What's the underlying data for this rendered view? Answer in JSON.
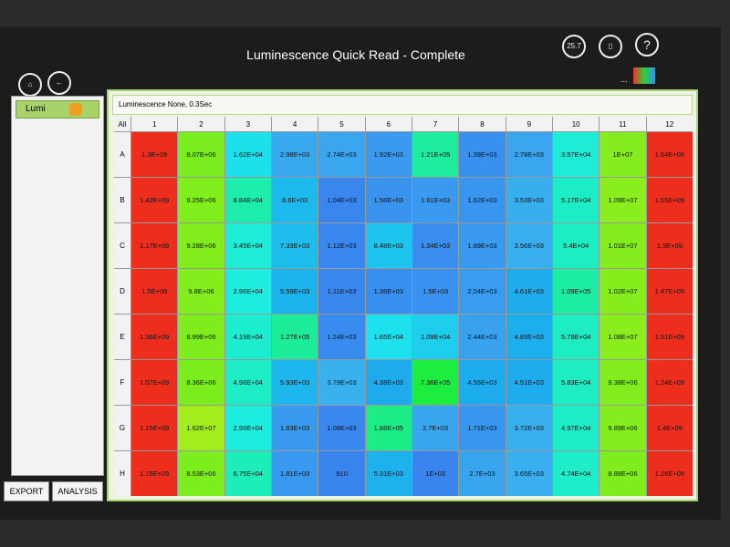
{
  "header": {
    "title": "Luminescence Quick Read - Complete",
    "icon_label": "25.7",
    "menu": "..."
  },
  "sidebar": {
    "items": [
      "Lumi"
    ]
  },
  "buttons": [
    "EXPORT",
    "ANALYSIS"
  ],
  "plate": {
    "caption": "Luminescence None, 0.3Sec",
    "corner": "All",
    "columns": [
      "1",
      "2",
      "3",
      "4",
      "5",
      "6",
      "7",
      "8",
      "9",
      "10",
      "11",
      "12"
    ],
    "rows": [
      {
        "label": "A",
        "cells": [
          "1.3E+09",
          "8.07E+06",
          "1.62E+04",
          "2.98E+03",
          "2.74E+03",
          "1.92E+03",
          "1.21E+05",
          "1.39E+03",
          "2.78E+03",
          "3.57E+04",
          "1E+07",
          "1.64E+09"
        ]
      },
      {
        "label": "B",
        "cells": [
          "1.42E+09",
          "9.25E+06",
          "8.84E+04",
          "6.6E+03",
          "1.04E+03",
          "1.56E+03",
          "1.91E+03",
          "1.62E+03",
          "3.53E+03",
          "5.17E+04",
          "1.09E+07",
          "1.55E+09"
        ]
      },
      {
        "label": "C",
        "cells": [
          "1.17E+09",
          "9.28E+06",
          "3.45E+04",
          "7.33E+03",
          "1.12E+03",
          "8.48E+03",
          "1.34E+03",
          "1.89E+03",
          "3.56E+03",
          "5.4E+04",
          "1.01E+07",
          "1.5E+09"
        ]
      },
      {
        "label": "D",
        "cells": [
          "1.5E+09",
          "9.8E+06",
          "2.96E+04",
          "5.59E+03",
          "1.11E+03",
          "1.36E+03",
          "1.5E+03",
          "2.04E+03",
          "4.61E+03",
          "1.09E+05",
          "1.02E+07",
          "1.47E+09"
        ]
      },
      {
        "label": "E",
        "cells": [
          "1.36E+09",
          "8.99E+06",
          "4.19E+04",
          "1.27E+05",
          "1.24E+03",
          "1.65E+04",
          "1.09E+04",
          "2.44E+03",
          "4.89E+03",
          "5.78E+04",
          "1.08E+07",
          "1.51E+09"
        ]
      },
      {
        "label": "F",
        "cells": [
          "1.07E+09",
          "8.36E+06",
          "4.98E+04",
          "5.93E+03",
          "3.79E+03",
          "4.38E+03",
          "7.36E+05",
          "4.55E+03",
          "4.51E+03",
          "5.83E+04",
          "9.38E+06",
          "1.24E+09"
        ]
      },
      {
        "label": "G",
        "cells": [
          "1.15E+09",
          "1.62E+07",
          "2.99E+04",
          "1.93E+03",
          "1.08E+03",
          "1.88E+05",
          "2.7E+03",
          "1.71E+03",
          "3.72E+03",
          "4.97E+04",
          "9.89E+06",
          "1.4E+09"
        ]
      },
      {
        "label": "H",
        "cells": [
          "1.15E+09",
          "8.53E+06",
          "6.75E+04",
          "1.81E+03",
          "910",
          "5.31E+03",
          "1E+03",
          "2.7E+03",
          "3.65E+03",
          "4.74E+04",
          "8.88E+06",
          "1.26E+09"
        ]
      }
    ]
  }
}
